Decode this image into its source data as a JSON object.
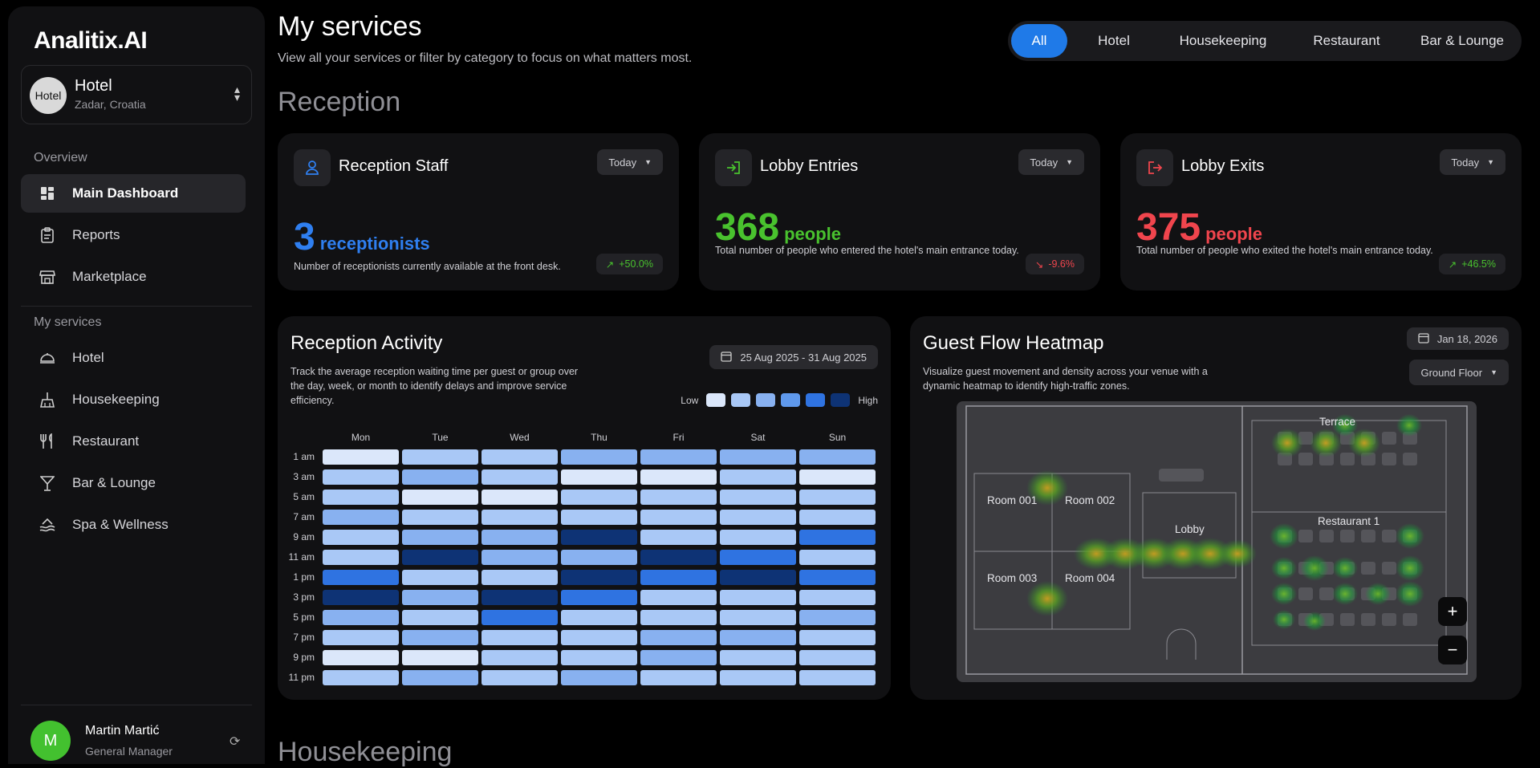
{
  "app": {
    "logo": "Analitix.AI"
  },
  "hotel_selector": {
    "avatar_text": "Hotel",
    "name": "Hotel",
    "location": "Zadar, Croatia"
  },
  "sidebar": {
    "overview_label": "Overview",
    "overview_items": [
      {
        "label": "Main Dashboard",
        "icon": "dashboard-icon",
        "active": true
      },
      {
        "label": "Reports",
        "icon": "clipboard-icon"
      },
      {
        "label": "Marketplace",
        "icon": "store-icon"
      }
    ],
    "services_label": "My services",
    "service_items": [
      {
        "label": "Hotel",
        "icon": "bell-icon"
      },
      {
        "label": "Housekeeping",
        "icon": "broom-icon"
      },
      {
        "label": "Restaurant",
        "icon": "utensils-icon"
      },
      {
        "label": "Bar & Lounge",
        "icon": "cocktail-icon"
      },
      {
        "label": "Spa & Wellness",
        "icon": "spa-icon"
      }
    ]
  },
  "user": {
    "initial": "M",
    "name": "Martin Martić",
    "role": "General Manager",
    "avatar_color": "#43c12f"
  },
  "header": {
    "title": "My services",
    "subtitle": "View all your services or filter by category to focus on what matters most.",
    "filters": [
      "All",
      "Hotel",
      "Housekeeping",
      "Restaurant",
      "Bar & Lounge"
    ],
    "active_filter": "All"
  },
  "sections": {
    "reception": "Reception",
    "housekeeping": "Housekeeping"
  },
  "kpis": [
    {
      "title": "Reception Staff",
      "icon": "person-icon",
      "period": "Today",
      "value": "3",
      "unit": "receptionists",
      "color": "#2f7ff0",
      "desc": "Number of receptionists currently available at the front desk.",
      "change": "+50.0%",
      "trend": "up"
    },
    {
      "title": "Lobby Entries",
      "icon": "login-icon",
      "period": "Today",
      "value": "368",
      "unit": "people",
      "color": "#49c22e",
      "desc": "Total number of people who entered the hotel's main entrance today.",
      "change": "-9.6%",
      "trend": "down"
    },
    {
      "title": "Lobby Exits",
      "icon": "logout-icon",
      "period": "Today",
      "value": "375",
      "unit": "people",
      "color": "#f0454d",
      "desc": "Total number of people who exited the hotel's main entrance today.",
      "change": "+46.5%",
      "trend": "up"
    }
  ],
  "activity": {
    "title": "Reception Activity",
    "description": "Track the average reception waiting time per guest or group over the day, week, or month to identify delays and improve service efficiency.",
    "date_range": "25 Aug 2025 - 31 Aug 2025",
    "legend_low": "Low",
    "legend_high": "High",
    "palette": [
      "#dbe7fa",
      "#a9c8f6",
      "#88b1f0",
      "#2f73e1",
      "#0e3375"
    ],
    "chart_data": {
      "type": "heatmap",
      "x": [
        "Mon",
        "Tue",
        "Wed",
        "Thu",
        "Fri",
        "Sat",
        "Sun"
      ],
      "y": [
        "1 am",
        "3 am",
        "5 am",
        "7 am",
        "9 am",
        "11 am",
        "1 pm",
        "3 pm",
        "5 pm",
        "7 pm",
        "9 pm",
        "11 pm"
      ],
      "values": [
        [
          0,
          1,
          1,
          2,
          2,
          2,
          2
        ],
        [
          1,
          2,
          1,
          0,
          0,
          1,
          0
        ],
        [
          1,
          0,
          0,
          1,
          1,
          1,
          1
        ],
        [
          2,
          1,
          1,
          1,
          1,
          1,
          1
        ],
        [
          1,
          2,
          2,
          4,
          1,
          1,
          3
        ],
        [
          1,
          4,
          2,
          2,
          4,
          3,
          1
        ],
        [
          3,
          1,
          1,
          4,
          3,
          4,
          3
        ],
        [
          4,
          2,
          4,
          3,
          1,
          1,
          1
        ],
        [
          2,
          1,
          3,
          1,
          1,
          1,
          2
        ],
        [
          1,
          2,
          1,
          1,
          2,
          2,
          1
        ],
        [
          0,
          0,
          1,
          1,
          2,
          1,
          1
        ],
        [
          1,
          2,
          1,
          2,
          1,
          1,
          1
        ]
      ],
      "scale": "Low to High"
    }
  },
  "heatmap": {
    "title": "Guest Flow Heatmap",
    "description": "Visualize guest movement and density across your venue with a dynamic heatmap to identify high-traffic zones.",
    "date": "Jan 18, 2026",
    "floor": "Ground Floor",
    "rooms": [
      "Room 001",
      "Room 002",
      "Room 003",
      "Room 004"
    ],
    "areas": {
      "lobby": "Lobby",
      "terrace": "Terrace",
      "restaurant": "Restaurant 1"
    },
    "zoom_in": "+",
    "zoom_out": "−"
  }
}
